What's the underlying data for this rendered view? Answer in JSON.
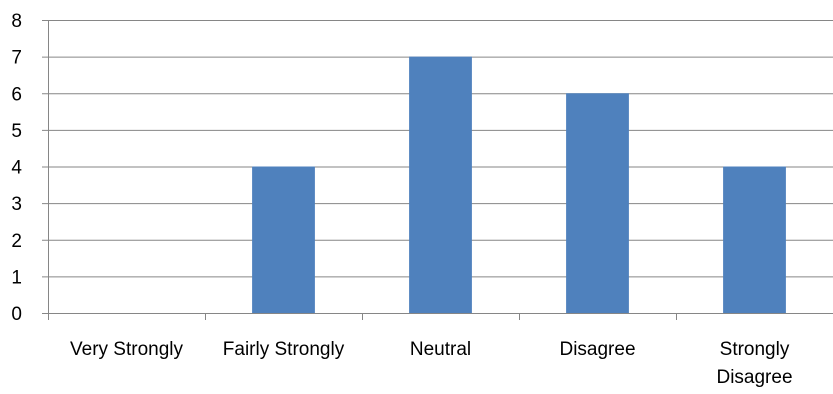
{
  "chart_data": {
    "type": "bar",
    "title": "",
    "xlabel": "",
    "ylabel": "",
    "categories": [
      "Very Strongly",
      "Fairly Strongly",
      "Neutral",
      "Disagree",
      [
        "Strongly",
        "Disagree"
      ]
    ],
    "values": [
      0,
      4,
      7,
      6,
      4
    ],
    "ylim": [
      0,
      8
    ],
    "yticks": [
      "0",
      "1",
      "2",
      "3",
      "4",
      "5",
      "6",
      "7",
      "8"
    ],
    "grid": true,
    "legend": "none",
    "colors": {
      "bar": "#4F81BD",
      "grid": "#868686"
    }
  }
}
